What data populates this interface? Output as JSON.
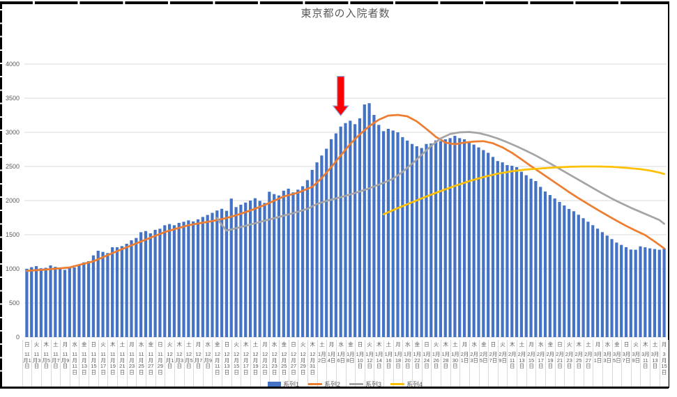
{
  "title": "東京都の入院者数",
  "colors": {
    "bar": "#4472C4",
    "line2": "#ED7D31",
    "line3": "#A5A5A5",
    "line4": "#FFC000",
    "grid": "#D9D9D9",
    "axis_text": "#595959",
    "arrow_fill": "#FE0000",
    "arrow_stroke": "#8FAADC",
    "cell_border": "#000000"
  },
  "legend": {
    "items": [
      {
        "label": "系列1",
        "type": "bar",
        "color": "#4472C4"
      },
      {
        "label": "系列2",
        "type": "line",
        "color": "#ED7D31"
      },
      {
        "label": "系列3",
        "type": "line",
        "color": "#A5A5A5"
      },
      {
        "label": "系列4",
        "type": "line",
        "color": "#FFC000"
      }
    ]
  },
  "y_axis": {
    "ticks": [
      {
        "value": 0,
        "label": "0"
      },
      {
        "value": 500,
        "label": "500"
      },
      {
        "value": 1000,
        "label": "1000"
      },
      {
        "value": 1500,
        "label": "1500"
      },
      {
        "value": 2000,
        "label": "2000"
      },
      {
        "value": 2500,
        "label": "2500"
      },
      {
        "value": 3000,
        "label": "3000"
      },
      {
        "value": 3500,
        "label": "3500"
      },
      {
        "value": 4000,
        "label": "4000"
      }
    ]
  },
  "x_axis": {
    "tick_every_days": 2,
    "ticks": [
      {
        "t": "11月1日",
        "w": "日"
      },
      {
        "t": "11月3日",
        "w": "火"
      },
      {
        "t": "11月5日",
        "w": "木"
      },
      {
        "t": "11月7日",
        "w": "土"
      },
      {
        "t": "11月9日",
        "w": "月"
      },
      {
        "t": "11月11日",
        "w": "水"
      },
      {
        "t": "11月13日",
        "w": "金"
      },
      {
        "t": "11月15日",
        "w": "日"
      },
      {
        "t": "11月17日",
        "w": "火"
      },
      {
        "t": "11月19日",
        "w": "木"
      },
      {
        "t": "11月21日",
        "w": "土"
      },
      {
        "t": "11月23日",
        "w": "月"
      },
      {
        "t": "11月25日",
        "w": "水"
      },
      {
        "t": "11月27日",
        "w": "金"
      },
      {
        "t": "11月29日",
        "w": "日"
      },
      {
        "t": "12月1日",
        "w": "火"
      },
      {
        "t": "12月3日",
        "w": "木"
      },
      {
        "t": "12月5日",
        "w": "土"
      },
      {
        "t": "12月7日",
        "w": "月"
      },
      {
        "t": "12月9日",
        "w": "水"
      },
      {
        "t": "12月11日",
        "w": "金"
      },
      {
        "t": "12月13日",
        "w": "日"
      },
      {
        "t": "12月15日",
        "w": "火"
      },
      {
        "t": "12月17日",
        "w": "木"
      },
      {
        "t": "12月19日",
        "w": "土"
      },
      {
        "t": "12月21日",
        "w": "月"
      },
      {
        "t": "12月23日",
        "w": "水"
      },
      {
        "t": "12月25日",
        "w": "金"
      },
      {
        "t": "12月27日",
        "w": "日"
      },
      {
        "t": "12月29日",
        "w": "火"
      },
      {
        "t": "12月31日",
        "w": "木"
      },
      {
        "t": "1月2日",
        "w": "土"
      },
      {
        "t": "1月4日",
        "w": "月"
      },
      {
        "t": "1月6日",
        "w": "水"
      },
      {
        "t": "1月8日",
        "w": "金"
      },
      {
        "t": "1月10日",
        "w": "日"
      },
      {
        "t": "1月12日",
        "w": "火"
      },
      {
        "t": "1月14日",
        "w": "木"
      },
      {
        "t": "1月16日",
        "w": "土"
      },
      {
        "t": "1月18日",
        "w": "月"
      },
      {
        "t": "1月20日",
        "w": "水"
      },
      {
        "t": "1月22日",
        "w": "金"
      },
      {
        "t": "1月24日",
        "w": "日"
      },
      {
        "t": "1月26日",
        "w": "火"
      },
      {
        "t": "1月28日",
        "w": "木"
      },
      {
        "t": "1月30日",
        "w": "土"
      },
      {
        "t": "2月1日",
        "w": "月"
      },
      {
        "t": "2月3日",
        "w": "水"
      },
      {
        "t": "2月5日",
        "w": "金"
      },
      {
        "t": "2月7日",
        "w": "日"
      },
      {
        "t": "2月9日",
        "w": "火"
      },
      {
        "t": "2月11日",
        "w": "木"
      },
      {
        "t": "2月13日",
        "w": "土"
      },
      {
        "t": "2月15日",
        "w": "月"
      },
      {
        "t": "2月17日",
        "w": "水"
      },
      {
        "t": "2月19日",
        "w": "金"
      },
      {
        "t": "2月21日",
        "w": "日"
      },
      {
        "t": "2月23日",
        "w": "火"
      },
      {
        "t": "2月25日",
        "w": "木"
      },
      {
        "t": "2月27日",
        "w": "土"
      },
      {
        "t": "3月1日",
        "w": "月"
      },
      {
        "t": "3月3日",
        "w": "水"
      },
      {
        "t": "3月5日",
        "w": "金"
      },
      {
        "t": "3月7日",
        "w": "日"
      },
      {
        "t": "3月9日",
        "w": "火"
      },
      {
        "t": "3月11日",
        "w": "木"
      },
      {
        "t": "3月13日",
        "w": "土"
      },
      {
        "t": "3月15日",
        "w": "月"
      }
    ]
  },
  "chart_data": {
    "type": "combo",
    "title": "東京都の入院者数",
    "n_points": 135,
    "x_range": "2020年11月1日〜2021年3月15日 (日次)",
    "ylim": [
      0,
      4000
    ],
    "grid": true,
    "legend_position": "bottom",
    "series": [
      {
        "name": "系列1",
        "type": "bar",
        "color": "#4472C4",
        "values": [
          1000,
          1025,
          1040,
          1008,
          1015,
          1050,
          1030,
          1000,
          985,
          1010,
          1020,
          1061,
          1095,
          1112,
          1197,
          1265,
          1248,
          1231,
          1316,
          1316,
          1333,
          1367,
          1418,
          1452,
          1537,
          1554,
          1520,
          1571,
          1588,
          1639,
          1656,
          1639,
          1673,
          1690,
          1710,
          1695,
          1725,
          1760,
          1790,
          1820,
          1855,
          1880,
          1850,
          2030,
          1905,
          1940,
          1970,
          2000,
          2035,
          1995,
          1965,
          2130,
          2095,
          2075,
          2145,
          2175,
          2120,
          2160,
          2210,
          2300,
          2450,
          2560,
          2660,
          2760,
          2900,
          2985,
          3085,
          3136,
          3170,
          3119,
          3205,
          3408,
          3427,
          3255,
          3109,
          3017,
          3051,
          3027,
          3000,
          2930,
          2880,
          2830,
          2796,
          2770,
          2830,
          2837,
          2881,
          2870,
          2898,
          2915,
          2949,
          2915,
          2898,
          2860,
          2820,
          2780,
          2740,
          2700,
          2640,
          2580,
          2560,
          2520,
          2510,
          2490,
          2422,
          2371,
          2320,
          2286,
          2201,
          2133,
          2082,
          2031,
          1980,
          1929,
          1878,
          1844,
          1793,
          1742,
          1691,
          1640,
          1589,
          1538,
          1487,
          1436,
          1385,
          1351,
          1317,
          1283,
          1280,
          1330,
          1315,
          1300,
          1290,
          1280,
          1300
        ]
      },
      {
        "name": "系列2",
        "type": "line",
        "color": "#ED7D31",
        "points": [
          [
            0,
            970
          ],
          [
            4,
            990
          ],
          [
            9,
            1020
          ],
          [
            14,
            1110
          ],
          [
            19,
            1260
          ],
          [
            24,
            1400
          ],
          [
            29,
            1540
          ],
          [
            34,
            1640
          ],
          [
            39,
            1700
          ],
          [
            42,
            1745
          ],
          [
            44,
            1785
          ],
          [
            47,
            1855
          ],
          [
            50,
            1935
          ],
          [
            54,
            2060
          ],
          [
            57,
            2115
          ],
          [
            60,
            2200
          ],
          [
            62,
            2330
          ],
          [
            64,
            2490
          ],
          [
            66,
            2660
          ],
          [
            68,
            2830
          ],
          [
            70,
            2970
          ],
          [
            72,
            3090
          ],
          [
            74,
            3185
          ],
          [
            76,
            3245
          ],
          [
            78,
            3255
          ],
          [
            80,
            3235
          ],
          [
            82,
            3160
          ],
          [
            84,
            3050
          ],
          [
            86,
            2935
          ],
          [
            88,
            2850
          ],
          [
            90,
            2825
          ],
          [
            92,
            2850
          ],
          [
            94,
            2865
          ],
          [
            96,
            2870
          ],
          [
            98,
            2840
          ],
          [
            100,
            2780
          ],
          [
            102,
            2700
          ],
          [
            104,
            2605
          ],
          [
            106,
            2505
          ],
          [
            108,
            2410
          ],
          [
            110,
            2315
          ],
          [
            112,
            2220
          ],
          [
            114,
            2125
          ],
          [
            116,
            2035
          ],
          [
            118,
            1950
          ],
          [
            120,
            1865
          ],
          [
            122,
            1785
          ],
          [
            124,
            1705
          ],
          [
            126,
            1630
          ],
          [
            128,
            1560
          ],
          [
            130,
            1495
          ],
          [
            132,
            1400
          ],
          [
            134,
            1300
          ]
        ]
      },
      {
        "name": "系列3",
        "type": "line",
        "color": "#A5A5A5",
        "points": [
          [
            40,
            1745
          ],
          [
            41,
            1645
          ],
          [
            42,
            1560
          ],
          [
            44,
            1595
          ],
          [
            47,
            1650
          ],
          [
            50,
            1705
          ],
          [
            53,
            1760
          ],
          [
            56,
            1815
          ],
          [
            59,
            1880
          ],
          [
            61,
            1950
          ],
          [
            63,
            1995
          ],
          [
            66,
            2050
          ],
          [
            69,
            2110
          ],
          [
            72,
            2180
          ],
          [
            75,
            2260
          ],
          [
            77,
            2320
          ],
          [
            79,
            2420
          ],
          [
            81,
            2540
          ],
          [
            83,
            2670
          ],
          [
            85,
            2800
          ],
          [
            87,
            2910
          ],
          [
            89,
            2975
          ],
          [
            91,
            3000
          ],
          [
            93,
            3005
          ],
          [
            95,
            2990
          ],
          [
            97,
            2955
          ],
          [
            99,
            2910
          ],
          [
            101,
            2855
          ],
          [
            103,
            2795
          ],
          [
            105,
            2730
          ],
          [
            107,
            2660
          ],
          [
            109,
            2585
          ],
          [
            111,
            2505
          ],
          [
            113,
            2425
          ],
          [
            115,
            2345
          ],
          [
            117,
            2265
          ],
          [
            119,
            2185
          ],
          [
            121,
            2105
          ],
          [
            123,
            2030
          ],
          [
            125,
            1960
          ],
          [
            127,
            1895
          ],
          [
            129,
            1835
          ],
          [
            131,
            1775
          ],
          [
            133,
            1715
          ],
          [
            134,
            1660
          ]
        ]
      },
      {
        "name": "系列4",
        "type": "line",
        "color": "#FFC000",
        "points": [
          [
            75,
            1800
          ],
          [
            78,
            1890
          ],
          [
            81,
            1975
          ],
          [
            84,
            2060
          ],
          [
            87,
            2140
          ],
          [
            90,
            2215
          ],
          [
            93,
            2285
          ],
          [
            96,
            2345
          ],
          [
            99,
            2395
          ],
          [
            102,
            2430
          ],
          [
            105,
            2455
          ],
          [
            108,
            2470
          ],
          [
            111,
            2485
          ],
          [
            114,
            2495
          ],
          [
            117,
            2500
          ],
          [
            120,
            2500
          ],
          [
            123,
            2495
          ],
          [
            126,
            2480
          ],
          [
            129,
            2460
          ],
          [
            131,
            2440
          ],
          [
            133,
            2410
          ],
          [
            134,
            2390
          ]
        ]
      }
    ],
    "annotation": {
      "type": "down-arrow",
      "day_index": 66,
      "points_at": "1月6日",
      "top_value": 3820,
      "tip_value": 3245
    }
  }
}
